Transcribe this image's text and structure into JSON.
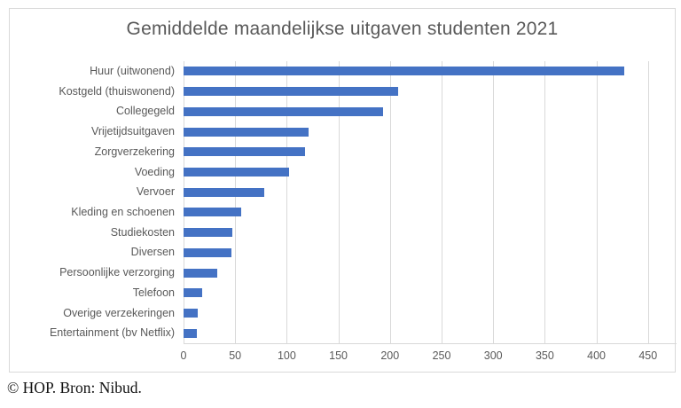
{
  "footer": {
    "text": "© HOP. Bron: Nibud."
  },
  "chart_data": {
    "type": "bar",
    "orientation": "horizontal",
    "title": "Gemiddelde maandelijkse uitgaven studenten 2021",
    "categories": [
      "Huur (uitwonend)",
      "Kostgeld (thuiswonend)",
      "Collegegeld",
      "Vrijetijdsuitgaven",
      "Zorgverzekering",
      "Voeding",
      "Vervoer",
      "Kleding en schoenen",
      "Studiekosten",
      "Diversen",
      "Persoonlijke verzorging",
      "Telefoon",
      "Overige verzekeringen",
      "Entertainment (bv Netflix)"
    ],
    "values": [
      427,
      208,
      193,
      121,
      118,
      102,
      78,
      56,
      47,
      46,
      33,
      18,
      14,
      13
    ],
    "xlabel": "",
    "ylabel": "",
    "xlim": [
      0,
      478
    ],
    "x_ticks": [
      0,
      50,
      100,
      150,
      200,
      250,
      300,
      350,
      400,
      450
    ],
    "grid": true,
    "legend": false,
    "bar_color": "#4472C4",
    "text_color": "#595959",
    "grid_color": "#D9D9D9"
  }
}
